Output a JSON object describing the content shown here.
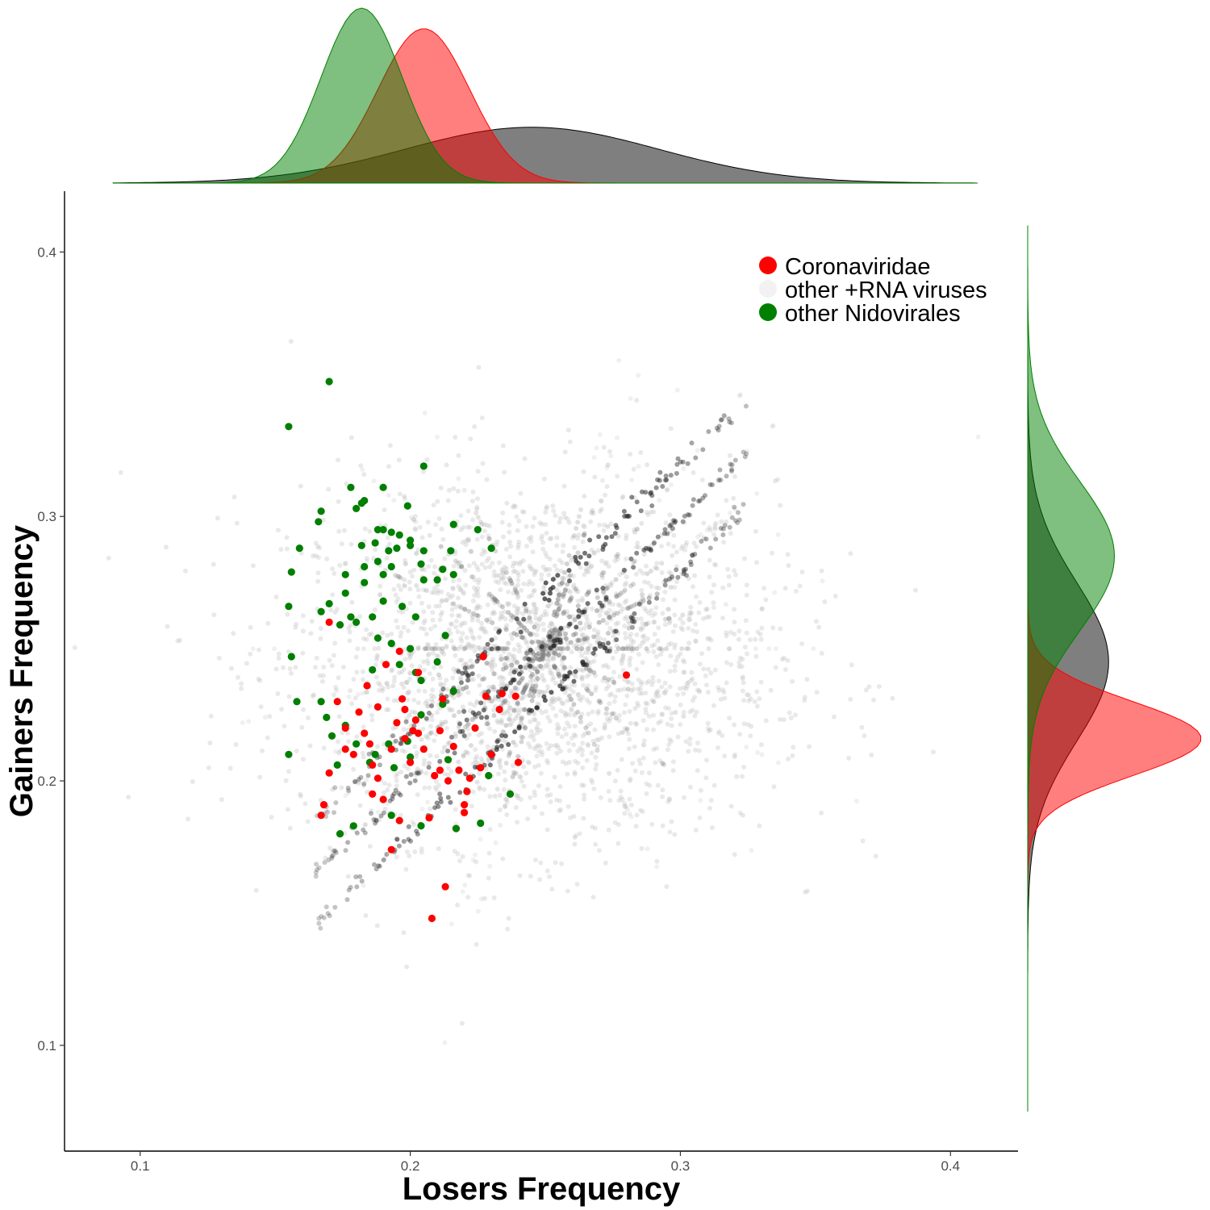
{
  "chart_data": {
    "type": "scatter",
    "xlabel": "Losers Frequency",
    "ylabel": "Gainers Frequency",
    "xlim": [
      0.072,
      0.425
    ],
    "ylim": [
      0.06,
      0.423
    ],
    "x_ticks": [
      "0.1",
      "0.2",
      "0.3",
      "0.4"
    ],
    "y_ticks": [
      "0.1",
      "0.2",
      "0.3",
      "0.4"
    ],
    "grid": false,
    "legend_position": "top-right",
    "series": [
      {
        "name": "Coronaviridae",
        "color": "#ff0000",
        "points": [
          [
            0.17,
            0.26
          ],
          [
            0.173,
            0.23
          ],
          [
            0.176,
            0.22
          ],
          [
            0.176,
            0.212
          ],
          [
            0.179,
            0.21
          ],
          [
            0.181,
            0.226
          ],
          [
            0.183,
            0.218
          ],
          [
            0.185,
            0.214
          ],
          [
            0.184,
            0.236
          ],
          [
            0.186,
            0.195
          ],
          [
            0.188,
            0.201
          ],
          [
            0.19,
            0.193
          ],
          [
            0.188,
            0.228
          ],
          [
            0.191,
            0.244
          ],
          [
            0.193,
            0.212
          ],
          [
            0.195,
            0.222
          ],
          [
            0.197,
            0.231
          ],
          [
            0.196,
            0.249
          ],
          [
            0.198,
            0.216
          ],
          [
            0.2,
            0.207
          ],
          [
            0.201,
            0.219
          ],
          [
            0.202,
            0.223
          ],
          [
            0.203,
            0.241
          ],
          [
            0.205,
            0.212
          ],
          [
            0.207,
            0.186
          ],
          [
            0.209,
            0.202
          ],
          [
            0.211,
            0.219
          ],
          [
            0.212,
            0.231
          ],
          [
            0.214,
            0.2
          ],
          [
            0.216,
            0.213
          ],
          [
            0.218,
            0.204
          ],
          [
            0.22,
            0.191
          ],
          [
            0.221,
            0.196
          ],
          [
            0.222,
            0.201
          ],
          [
            0.224,
            0.22
          ],
          [
            0.226,
            0.205
          ],
          [
            0.227,
            0.247
          ],
          [
            0.23,
            0.21
          ],
          [
            0.233,
            0.227
          ],
          [
            0.234,
            0.233
          ],
          [
            0.239,
            0.232
          ],
          [
            0.24,
            0.207
          ],
          [
            0.193,
            0.174
          ],
          [
            0.213,
            0.16
          ],
          [
            0.208,
            0.148
          ],
          [
            0.168,
            0.191
          ],
          [
            0.167,
            0.187
          ],
          [
            0.17,
            0.203
          ],
          [
            0.28,
            0.24
          ],
          [
            0.22,
            0.188
          ],
          [
            0.186,
            0.206
          ],
          [
            0.203,
            0.218
          ],
          [
            0.196,
            0.185
          ],
          [
            0.211,
            0.204
          ],
          [
            0.228,
            0.232
          ],
          [
            0.198,
            0.227
          ]
        ]
      },
      {
        "name": "other +RNA viruses",
        "color": "#bfbfbf",
        "points": []
      },
      {
        "name": "other Nidovirales",
        "color": "#007f00",
        "points": [
          [
            0.17,
            0.351
          ],
          [
            0.155,
            0.334
          ],
          [
            0.205,
            0.319
          ],
          [
            0.167,
            0.302
          ],
          [
            0.166,
            0.298
          ],
          [
            0.178,
            0.311
          ],
          [
            0.182,
            0.305
          ],
          [
            0.183,
            0.306
          ],
          [
            0.19,
            0.311
          ],
          [
            0.199,
            0.304
          ],
          [
            0.18,
            0.303
          ],
          [
            0.188,
            0.295
          ],
          [
            0.19,
            0.295
          ],
          [
            0.193,
            0.294
          ],
          [
            0.196,
            0.293
          ],
          [
            0.2,
            0.291
          ],
          [
            0.216,
            0.297
          ],
          [
            0.225,
            0.295
          ],
          [
            0.23,
            0.288
          ],
          [
            0.159,
            0.288
          ],
          [
            0.182,
            0.289
          ],
          [
            0.187,
            0.29
          ],
          [
            0.192,
            0.287
          ],
          [
            0.195,
            0.288
          ],
          [
            0.2,
            0.289
          ],
          [
            0.205,
            0.287
          ],
          [
            0.215,
            0.287
          ],
          [
            0.183,
            0.281
          ],
          [
            0.188,
            0.283
          ],
          [
            0.193,
            0.281
          ],
          [
            0.204,
            0.282
          ],
          [
            0.212,
            0.28
          ],
          [
            0.156,
            0.279
          ],
          [
            0.176,
            0.278
          ],
          [
            0.183,
            0.275
          ],
          [
            0.19,
            0.278
          ],
          [
            0.205,
            0.276
          ],
          [
            0.21,
            0.276
          ],
          [
            0.216,
            0.278
          ],
          [
            0.155,
            0.266
          ],
          [
            0.167,
            0.264
          ],
          [
            0.17,
            0.267
          ],
          [
            0.176,
            0.271
          ],
          [
            0.178,
            0.262
          ],
          [
            0.18,
            0.26
          ],
          [
            0.186,
            0.262
          ],
          [
            0.19,
            0.268
          ],
          [
            0.197,
            0.266
          ],
          [
            0.202,
            0.262
          ],
          [
            0.156,
            0.247
          ],
          [
            0.174,
            0.259
          ],
          [
            0.188,
            0.254
          ],
          [
            0.193,
            0.252
          ],
          [
            0.2,
            0.25
          ],
          [
            0.213,
            0.255
          ],
          [
            0.202,
            0.241
          ],
          [
            0.21,
            0.245
          ],
          [
            0.186,
            0.242
          ],
          [
            0.196,
            0.244
          ],
          [
            0.216,
            0.234
          ],
          [
            0.158,
            0.23
          ],
          [
            0.169,
            0.224
          ],
          [
            0.171,
            0.217
          ],
          [
            0.18,
            0.214
          ],
          [
            0.187,
            0.21
          ],
          [
            0.192,
            0.214
          ],
          [
            0.199,
            0.215
          ],
          [
            0.204,
            0.225
          ],
          [
            0.212,
            0.229
          ],
          [
            0.176,
            0.221
          ],
          [
            0.173,
            0.206
          ],
          [
            0.185,
            0.207
          ],
          [
            0.194,
            0.205
          ],
          [
            0.2,
            0.209
          ],
          [
            0.214,
            0.208
          ],
          [
            0.229,
            0.202
          ],
          [
            0.237,
            0.195
          ],
          [
            0.174,
            0.18
          ],
          [
            0.179,
            0.183
          ],
          [
            0.193,
            0.187
          ],
          [
            0.204,
            0.183
          ],
          [
            0.217,
            0.182
          ],
          [
            0.226,
            0.184
          ],
          [
            0.155,
            0.21
          ],
          [
            0.167,
            0.23
          ],
          [
            0.204,
            0.238
          ]
        ]
      }
    ],
    "marginal_densities": {
      "top_x": [
        {
          "name": "Coronaviridae",
          "color": "#ff0000",
          "mean": 0.205,
          "sd": 0.017
        },
        {
          "name": "other +RNA viruses",
          "color": "#000000",
          "mean": 0.245,
          "sd": 0.047
        },
        {
          "name": "other Nidovirales",
          "color": "#008000",
          "mean": 0.182,
          "sd": 0.015
        }
      ],
      "right_y": [
        {
          "name": "Coronaviridae",
          "color": "#ff0000",
          "mean": 0.216,
          "sd": 0.014
        },
        {
          "name": "other +RNA viruses",
          "color": "#000000",
          "mean": 0.245,
          "sd": 0.03
        },
        {
          "name": "other Nidovirales",
          "color": "#008000",
          "mean": 0.285,
          "sd": 0.028
        }
      ]
    }
  }
}
